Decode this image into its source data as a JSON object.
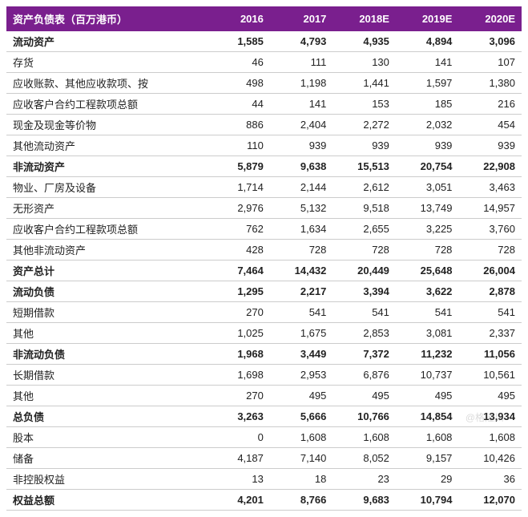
{
  "table": {
    "header_bg": "#7a1f8e",
    "header_color": "#ffffff",
    "border_color": "#cccccc",
    "columns": [
      "资产负债表（百万港币）",
      "2016",
      "2017",
      "2018E",
      "2019E",
      "2020E"
    ],
    "rows": [
      {
        "bold": true,
        "cells": [
          "流动资产",
          "1,585",
          "4,793",
          "4,935",
          "4,894",
          "3,096"
        ]
      },
      {
        "bold": false,
        "cells": [
          "存货",
          "46",
          "111",
          "130",
          "141",
          "107"
        ]
      },
      {
        "bold": false,
        "cells": [
          "应收账款、其他应收款项、按",
          "498",
          "1,198",
          "1,441",
          "1,597",
          "1,380"
        ]
      },
      {
        "bold": false,
        "cells": [
          "应收客户合约工程款项总额",
          "44",
          "141",
          "153",
          "185",
          "216"
        ]
      },
      {
        "bold": false,
        "cells": [
          "现金及现金等价物",
          "886",
          "2,404",
          "2,272",
          "2,032",
          "454"
        ]
      },
      {
        "bold": false,
        "cells": [
          "其他流动资产",
          "110",
          "939",
          "939",
          "939",
          "939"
        ]
      },
      {
        "bold": true,
        "cells": [
          "非流动资产",
          "5,879",
          "9,638",
          "15,513",
          "20,754",
          "22,908"
        ]
      },
      {
        "bold": false,
        "cells": [
          "物业、厂房及设备",
          "1,714",
          "2,144",
          "2,612",
          "3,051",
          "3,463"
        ]
      },
      {
        "bold": false,
        "cells": [
          "无形资产",
          "2,976",
          "5,132",
          "9,518",
          "13,749",
          "14,957"
        ]
      },
      {
        "bold": false,
        "cells": [
          "应收客户合约工程款项总额",
          "762",
          "1,634",
          "2,655",
          "3,225",
          "3,760"
        ]
      },
      {
        "bold": false,
        "cells": [
          "其他非流动资产",
          "428",
          "728",
          "728",
          "728",
          "728"
        ]
      },
      {
        "bold": true,
        "cells": [
          "资产总计",
          "7,464",
          "14,432",
          "20,449",
          "25,648",
          "26,004"
        ]
      },
      {
        "bold": true,
        "cells": [
          "流动负债",
          "1,295",
          "2,217",
          "3,394",
          "3,622",
          "2,878"
        ]
      },
      {
        "bold": false,
        "cells": [
          "短期借款",
          "270",
          "541",
          "541",
          "541",
          "541"
        ]
      },
      {
        "bold": false,
        "cells": [
          "其他",
          "1,025",
          "1,675",
          "2,853",
          "3,081",
          "2,337"
        ]
      },
      {
        "bold": true,
        "cells": [
          "非流动负债",
          "1,968",
          "3,449",
          "7,372",
          "11,232",
          "11,056"
        ]
      },
      {
        "bold": false,
        "cells": [
          "长期借款",
          "1,698",
          "2,953",
          "6,876",
          "10,737",
          "10,561"
        ]
      },
      {
        "bold": false,
        "cells": [
          "其他",
          "270",
          "495",
          "495",
          "495",
          "495"
        ]
      },
      {
        "bold": true,
        "cells": [
          "总负债",
          "3,263",
          "5,666",
          "10,766",
          "14,854",
          "13,934"
        ]
      },
      {
        "bold": false,
        "cells": [
          "股本",
          "0",
          "1,608",
          "1,608",
          "1,608",
          "1,608"
        ]
      },
      {
        "bold": false,
        "cells": [
          "储备",
          "4,187",
          "7,140",
          "8,052",
          "9,157",
          "10,426"
        ]
      },
      {
        "bold": false,
        "cells": [
          "非控股权益",
          "13",
          "18",
          "23",
          "29",
          "36"
        ]
      },
      {
        "bold": true,
        "cells": [
          "权益总额",
          "4,201",
          "8,766",
          "9,683",
          "10,794",
          "12,070"
        ]
      }
    ]
  },
  "watermark": "@格隆川"
}
